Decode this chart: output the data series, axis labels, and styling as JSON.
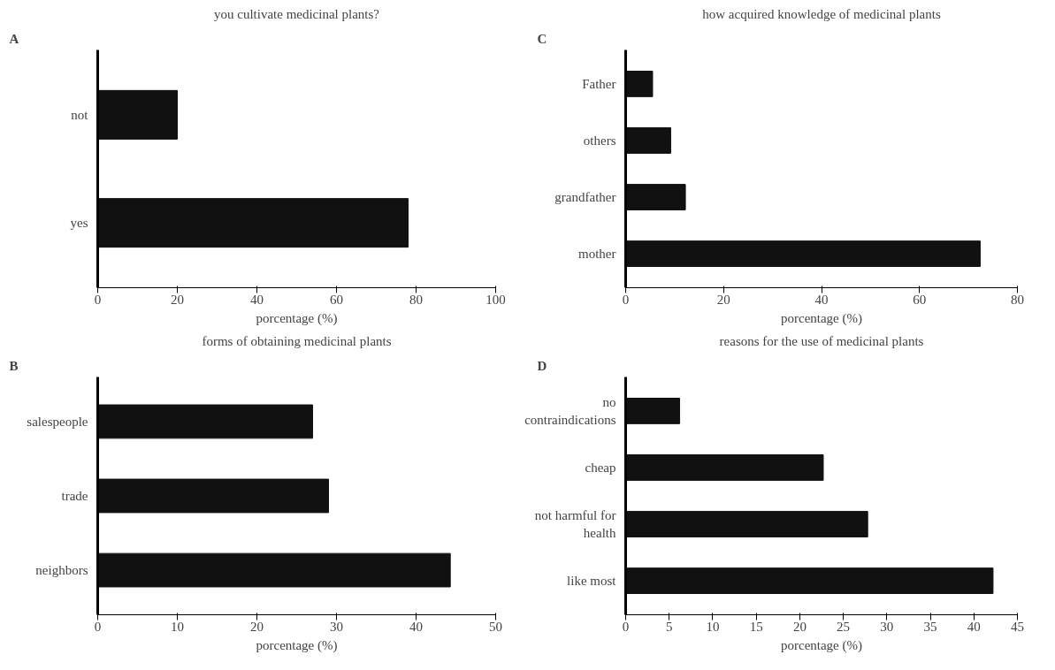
{
  "chart_data": [
    {
      "type": "bar",
      "orientation": "horizontal",
      "title": "you cultivate medicinal plants?",
      "annotations": [
        "A"
      ],
      "categories": [
        "not",
        "yes"
      ],
      "values": [
        20,
        78
      ],
      "color": "#111111",
      "xlim": [
        0,
        100
      ],
      "xticks": [
        0,
        20,
        40,
        60,
        80,
        100
      ],
      "xlabel": "porcentage (%)",
      "grid": false
    },
    {
      "type": "bar",
      "orientation": "horizontal",
      "title": "how acquired knowledge of medicinal plants",
      "annotations": [
        "C"
      ],
      "categories": [
        "Father",
        "others",
        "grandfather",
        "mother"
      ],
      "values": [
        5.5,
        9.2,
        12.2,
        72.4
      ],
      "color": "#111111",
      "xlim": [
        0,
        80
      ],
      "xticks": [
        0,
        20,
        40,
        60,
        80
      ],
      "xlabel": "porcentage (%)",
      "grid": false
    },
    {
      "type": "bar",
      "orientation": "horizontal",
      "title": "forms of obtaining medicinal plants",
      "annotations": [
        "B"
      ],
      "categories": [
        "salespeople",
        "trade",
        "neighbors"
      ],
      "values": [
        27,
        29,
        44.3
      ],
      "color": "#111111",
      "xlim": [
        0,
        50
      ],
      "xticks": [
        0,
        10,
        20,
        30,
        40,
        50
      ],
      "xlabel": "porcentage (%)",
      "grid": false
    },
    {
      "type": "bar",
      "orientation": "horizontal",
      "title": "reasons for the use of medicinal plants",
      "annotations": [
        "D"
      ],
      "categories": [
        "no\ncontraindications",
        "cheap",
        "not harmful for\nhealth",
        "like most"
      ],
      "values": [
        6.2,
        22.7,
        27.8,
        42.2
      ],
      "color": "#111111",
      "xlim": [
        0,
        45
      ],
      "xticks": [
        0,
        5,
        10,
        15,
        20,
        25,
        30,
        35,
        40,
        45
      ],
      "xlabel": "porcentage (%)",
      "grid": false
    }
  ]
}
